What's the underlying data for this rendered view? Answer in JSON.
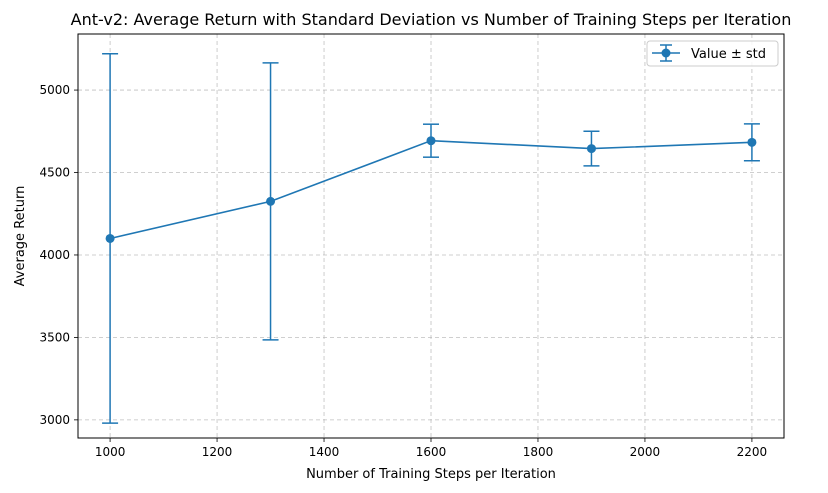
{
  "chart_data": {
    "type": "line",
    "title": "Ant-v2: Average Return with Standard Deviation vs Number of Training Steps per Iteration",
    "xlabel": "Number of Training Steps per Iteration",
    "ylabel": "Average Return",
    "xlim": [
      940,
      2260
    ],
    "ylim": [
      2890,
      5340
    ],
    "xticks": [
      1000,
      1200,
      1400,
      1600,
      1800,
      2000,
      2200
    ],
    "yticks": [
      3000,
      3500,
      4000,
      4500,
      5000
    ],
    "grid": true,
    "legend_position": "top-right",
    "series": [
      {
        "name": "Value ± std",
        "color": "#1f77b4",
        "x": [
          1000,
          1300,
          1600,
          1900,
          2200
        ],
        "y": [
          4100,
          4325,
          4693,
          4645,
          4683
        ],
        "std": [
          1120,
          840,
          100,
          105,
          112
        ]
      }
    ]
  }
}
